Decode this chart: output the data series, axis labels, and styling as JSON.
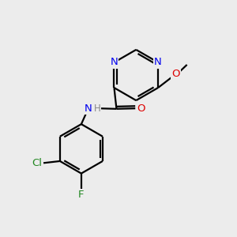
{
  "background_color": "#ececec",
  "bond_color": "#000000",
  "atom_colors": {
    "N": "#0000ee",
    "O": "#dd0000",
    "Cl": "#228822",
    "F": "#228822",
    "H": "#888888"
  },
  "figsize": [
    3.0,
    3.0
  ],
  "dpi": 100,
  "bond_lw": 1.6,
  "font_size": 9.5
}
